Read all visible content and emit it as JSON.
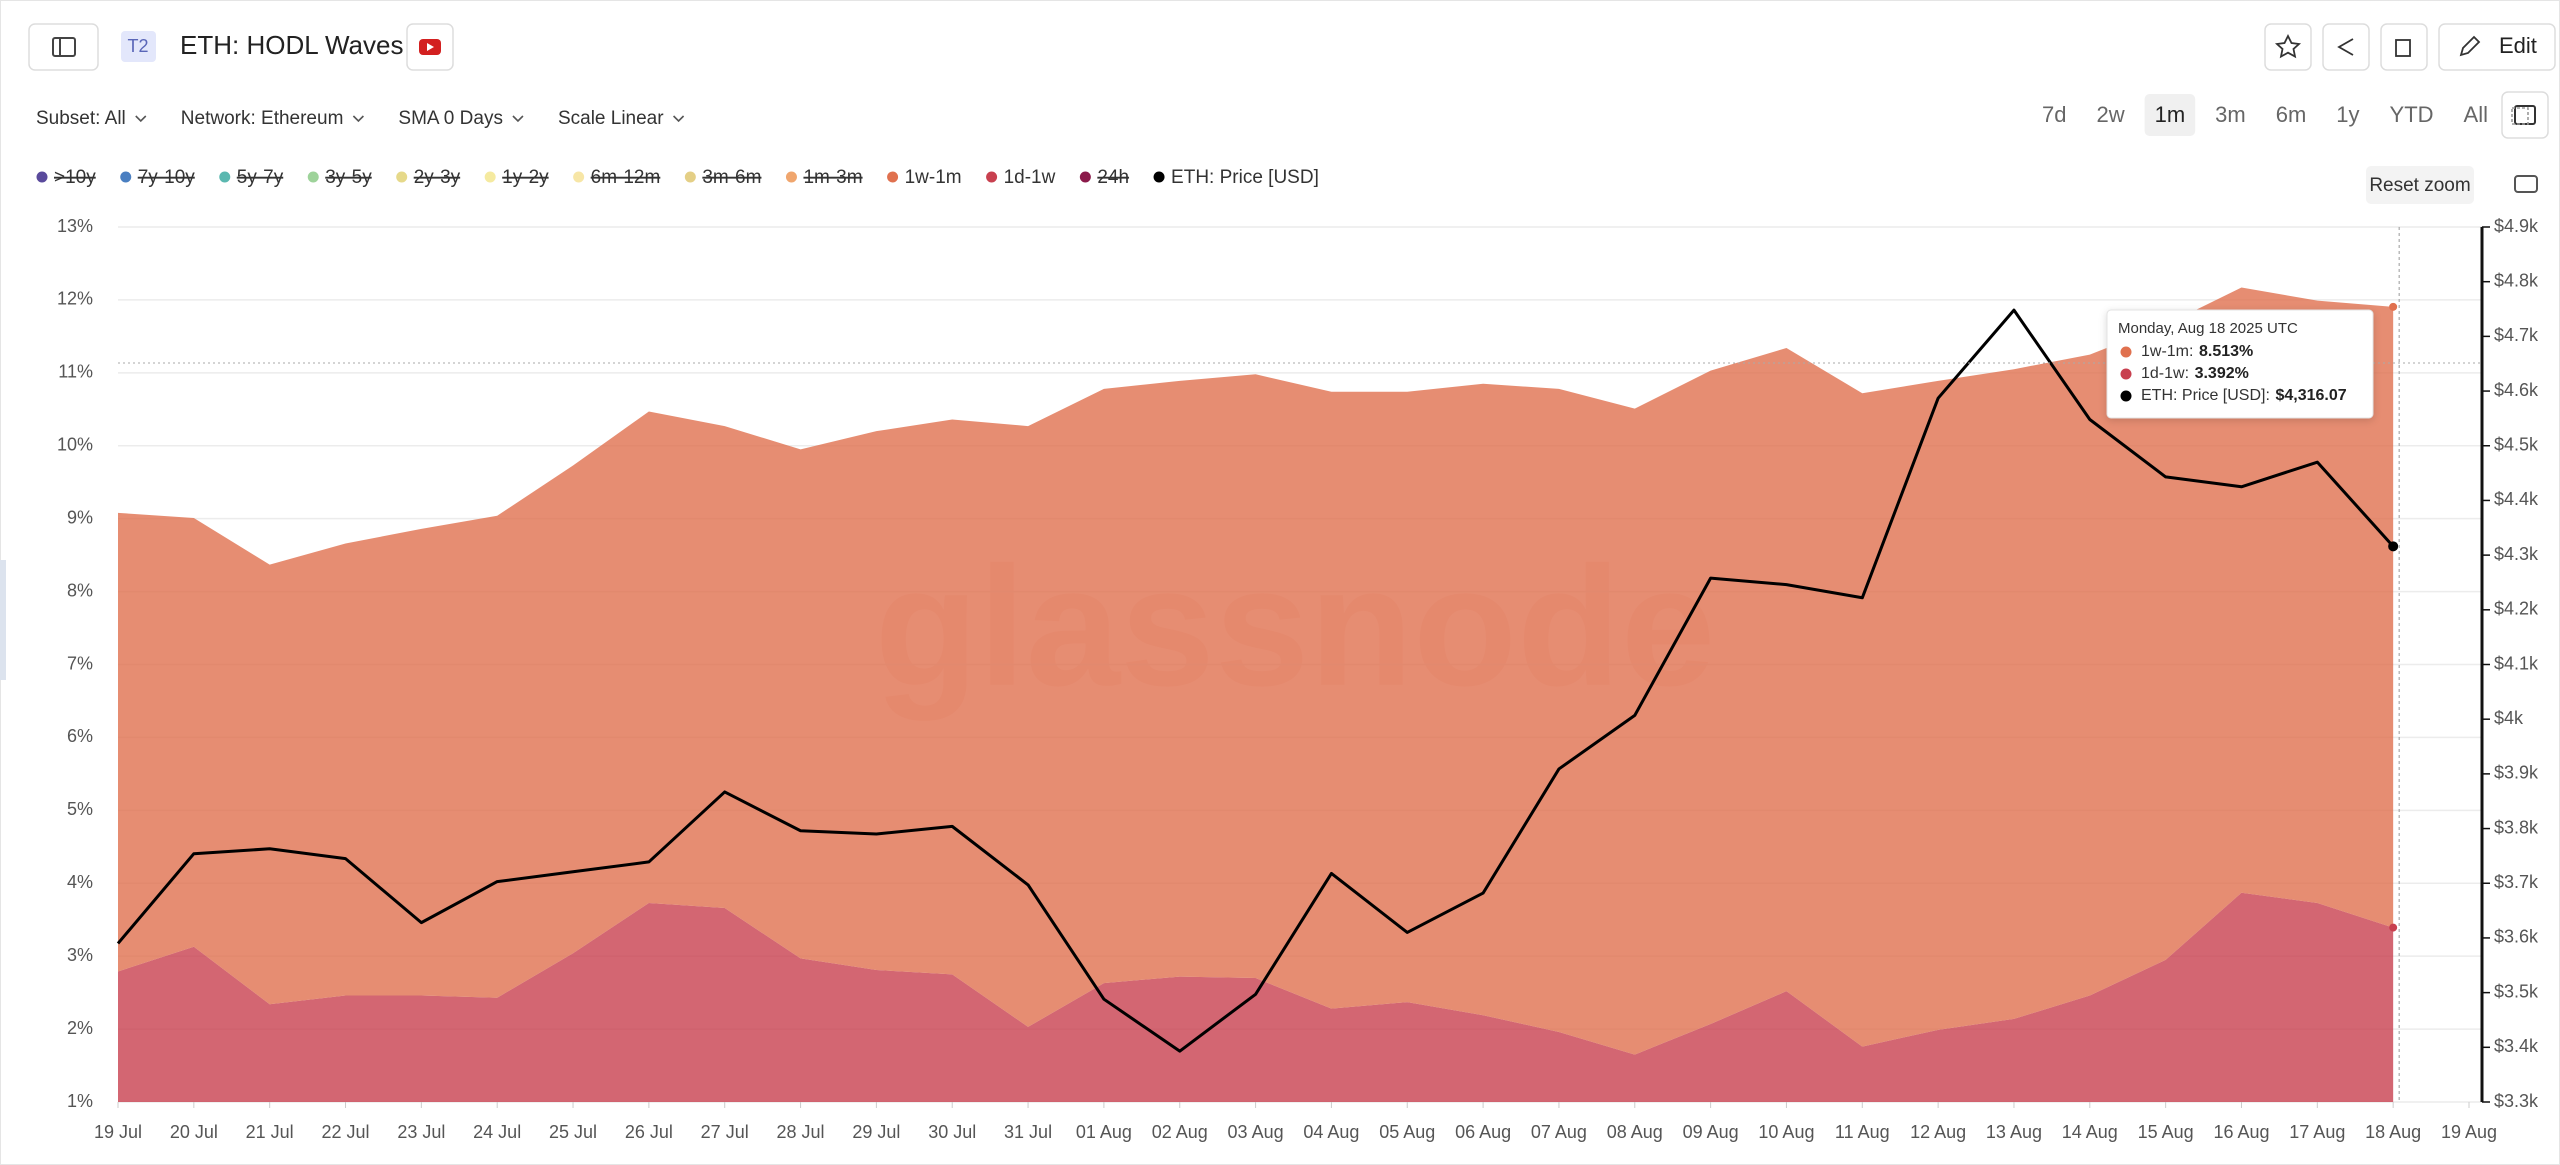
{
  "toolbar": {
    "badge": "T2",
    "edit": "Edit",
    "filters": [
      "Subset: All",
      "Network: Ethereum",
      "SMA 0 Days",
      "Scale Linear"
    ],
    "ranges": [
      "7d",
      "2w",
      "1m",
      "3m",
      "6m",
      "1y",
      "YTD",
      "All"
    ],
    "active_range": "1m",
    "reset_zoom": "Reset zoom",
    "watermark": "glassnode"
  },
  "chart_data": {
    "type": "area",
    "title": "ETH: HODL Waves",
    "categories": [
      "19 Jul",
      "20 Jul",
      "21 Jul",
      "22 Jul",
      "23 Jul",
      "24 Jul",
      "25 Jul",
      "26 Jul",
      "27 Jul",
      "28 Jul",
      "29 Jul",
      "30 Jul",
      "31 Jul",
      "01 Aug",
      "02 Aug",
      "03 Aug",
      "04 Aug",
      "05 Aug",
      "06 Aug",
      "07 Aug",
      "08 Aug",
      "09 Aug",
      "10 Aug",
      "11 Aug",
      "12 Aug",
      "13 Aug",
      "14 Aug",
      "15 Aug",
      "16 Aug",
      "17 Aug",
      "18 Aug",
      "19 Aug"
    ],
    "series": [
      {
        "name": ">10y",
        "color": "#5a4a9c",
        "hidden": true
      },
      {
        "name": "7y-10y",
        "color": "#4a7fc1",
        "hidden": true
      },
      {
        "name": "5y-7y",
        "color": "#5bb8b0",
        "hidden": true
      },
      {
        "name": "3y-5y",
        "color": "#9ed39a",
        "hidden": true
      },
      {
        "name": "2y-3y",
        "color": "#e6d98a",
        "hidden": true
      },
      {
        "name": "1y-2y",
        "color": "#f5eaa0",
        "hidden": true
      },
      {
        "name": "6m-12m",
        "color": "#f7e6a6",
        "hidden": true
      },
      {
        "name": "3m-6m",
        "color": "#e4cf86",
        "hidden": true
      },
      {
        "name": "1m-3m",
        "color": "#f0a66e",
        "hidden": true
      },
      {
        "name": "1w-1m",
        "color": "#e0714f",
        "values": [
          6.29,
          5.88,
          6.03,
          6.2,
          6.4,
          6.61,
          6.69,
          6.74,
          6.61,
          6.98,
          7.39,
          7.61,
          8.24,
          8.15,
          8.17,
          8.28,
          8.46,
          8.37,
          8.66,
          8.82,
          8.86,
          8.96,
          8.82,
          8.96,
          8.9,
          8.91,
          8.79,
          8.71,
          8.3,
          8.26,
          8.513,
          null
        ]
      },
      {
        "name": "1d-1w",
        "color": "#c8404f",
        "values": [
          2.79,
          3.13,
          2.34,
          2.46,
          2.46,
          2.43,
          3.04,
          3.73,
          3.66,
          2.97,
          2.81,
          2.75,
          2.03,
          2.63,
          2.72,
          2.7,
          2.28,
          2.37,
          2.19,
          1.96,
          1.65,
          2.07,
          2.52,
          1.76,
          1.99,
          2.14,
          2.46,
          2.95,
          3.87,
          3.73,
          3.392,
          null
        ]
      },
      {
        "name": "24h",
        "color": "#8b1a4a",
        "hidden": true
      },
      {
        "name": "ETH: Price [USD]",
        "color": "#000000",
        "axis": "y2",
        "values": [
          3590,
          3754,
          3763,
          3745,
          3628,
          3703,
          3721,
          3739,
          3867,
          3796,
          3790,
          3804,
          3697,
          3488,
          3393,
          3497,
          3718,
          3610,
          3682,
          3909,
          4007,
          4258,
          4246,
          4222,
          4587,
          4748,
          4548,
          4443,
          4425,
          4470,
          4316.07,
          null
        ]
      }
    ],
    "ylim": [
      1,
      13
    ],
    "yticks": [
      {
        "value": 1,
        "label": "1%"
      },
      {
        "value": 2,
        "label": "2%"
      },
      {
        "value": 3,
        "label": "3%"
      },
      {
        "value": 4,
        "label": "4%"
      },
      {
        "value": 5,
        "label": "5%"
      },
      {
        "value": 6,
        "label": "6%"
      },
      {
        "value": 7,
        "label": "7%"
      },
      {
        "value": 8,
        "label": "8%"
      },
      {
        "value": 9,
        "label": "9%"
      },
      {
        "value": 10,
        "label": "10%"
      },
      {
        "value": 11,
        "label": "11%"
      },
      {
        "value": 12,
        "label": "12%"
      },
      {
        "value": 13,
        "label": "13%"
      }
    ],
    "y2lim": [
      3300,
      4900
    ],
    "y2ticks": [
      {
        "value": 3300,
        "label": "$3.3k"
      },
      {
        "value": 3400,
        "label": "$3.4k"
      },
      {
        "value": 3500,
        "label": "$3.5k"
      },
      {
        "value": 3600,
        "label": "$3.6k"
      },
      {
        "value": 3700,
        "label": "$3.7k"
      },
      {
        "value": 3800,
        "label": "$3.8k"
      },
      {
        "value": 3900,
        "label": "$3.9k"
      },
      {
        "value": 4000,
        "label": "$4k"
      },
      {
        "value": 4100,
        "label": "$4.1k"
      },
      {
        "value": 4200,
        "label": "$4.2k"
      },
      {
        "value": 4300,
        "label": "$4.3k"
      },
      {
        "value": 4400,
        "label": "$4.4k"
      },
      {
        "value": 4500,
        "label": "$4.5k"
      },
      {
        "value": 4600,
        "label": "$4.6k"
      },
      {
        "value": 4700,
        "label": "$4.7k"
      },
      {
        "value": 4800,
        "label": "$4.8k"
      },
      {
        "value": 4900,
        "label": "$4.9k"
      }
    ],
    "grid": true,
    "tooltip": {
      "title": "Monday, Aug 18 2025 UTC",
      "value_labels": [
        "8.513%",
        "3.392%",
        "$4,316.07"
      ]
    }
  }
}
